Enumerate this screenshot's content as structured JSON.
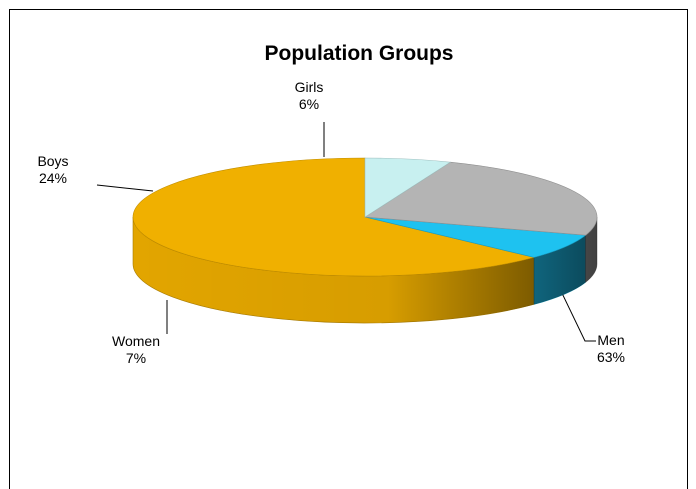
{
  "chart_data": {
    "type": "pie",
    "title": "Population Groups",
    "slices": [
      {
        "name": "Men",
        "label": "Men",
        "value": 63,
        "percent_label": "63%",
        "color": "#F0B000"
      },
      {
        "name": "Women",
        "label": "Women",
        "value": 7,
        "percent_label": "7%",
        "color": "#1EC2F0"
      },
      {
        "name": "Boys",
        "label": "Boys",
        "value": 24,
        "percent_label": "24%",
        "color": "#B4B4B4"
      },
      {
        "name": "Girls",
        "label": "Girls",
        "value": 6,
        "percent_label": "6%",
        "color": "#C8F0F0"
      }
    ],
    "three_d": true,
    "start_angle_deg": -90,
    "legend": "none"
  }
}
